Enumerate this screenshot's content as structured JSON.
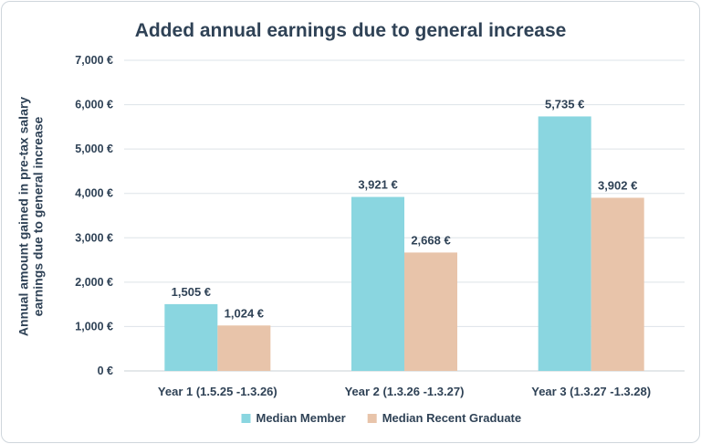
{
  "chart_data": {
    "type": "bar",
    "title": "Added annual earnings due to general increase",
    "ylabel": "Annual amount gained in pre-tax salary earnings due to general increase",
    "xlabel": "",
    "categories": [
      "Year 1 (1.5.25 -1.3.26)",
      "Year 2 (1.3.26 -1.3.27)",
      "Year 3 (1.3.27 -1.3.28)"
    ],
    "series": [
      {
        "name": "Median Member",
        "values": [
          1505,
          3921,
          5735
        ],
        "labels": [
          "1,505 €",
          "3,921 €",
          "5,735 €"
        ],
        "color": "#8ad6e0"
      },
      {
        "name": "Median Recent Graduate",
        "values": [
          1024,
          2668,
          3902
        ],
        "labels": [
          "1,024 €",
          "2,668 €",
          "3,902 €"
        ],
        "color": "#e8c4aa"
      }
    ],
    "ylim": [
      0,
      7000
    ],
    "yticks": [
      0,
      1000,
      2000,
      3000,
      4000,
      5000,
      6000,
      7000
    ],
    "ytick_labels": [
      "0 €",
      "1,000 €",
      "2,000 €",
      "3,000 €",
      "4,000 €",
      "5,000 €",
      "6,000 €",
      "7,000 €"
    ],
    "grid": true,
    "legend_position": "bottom"
  }
}
